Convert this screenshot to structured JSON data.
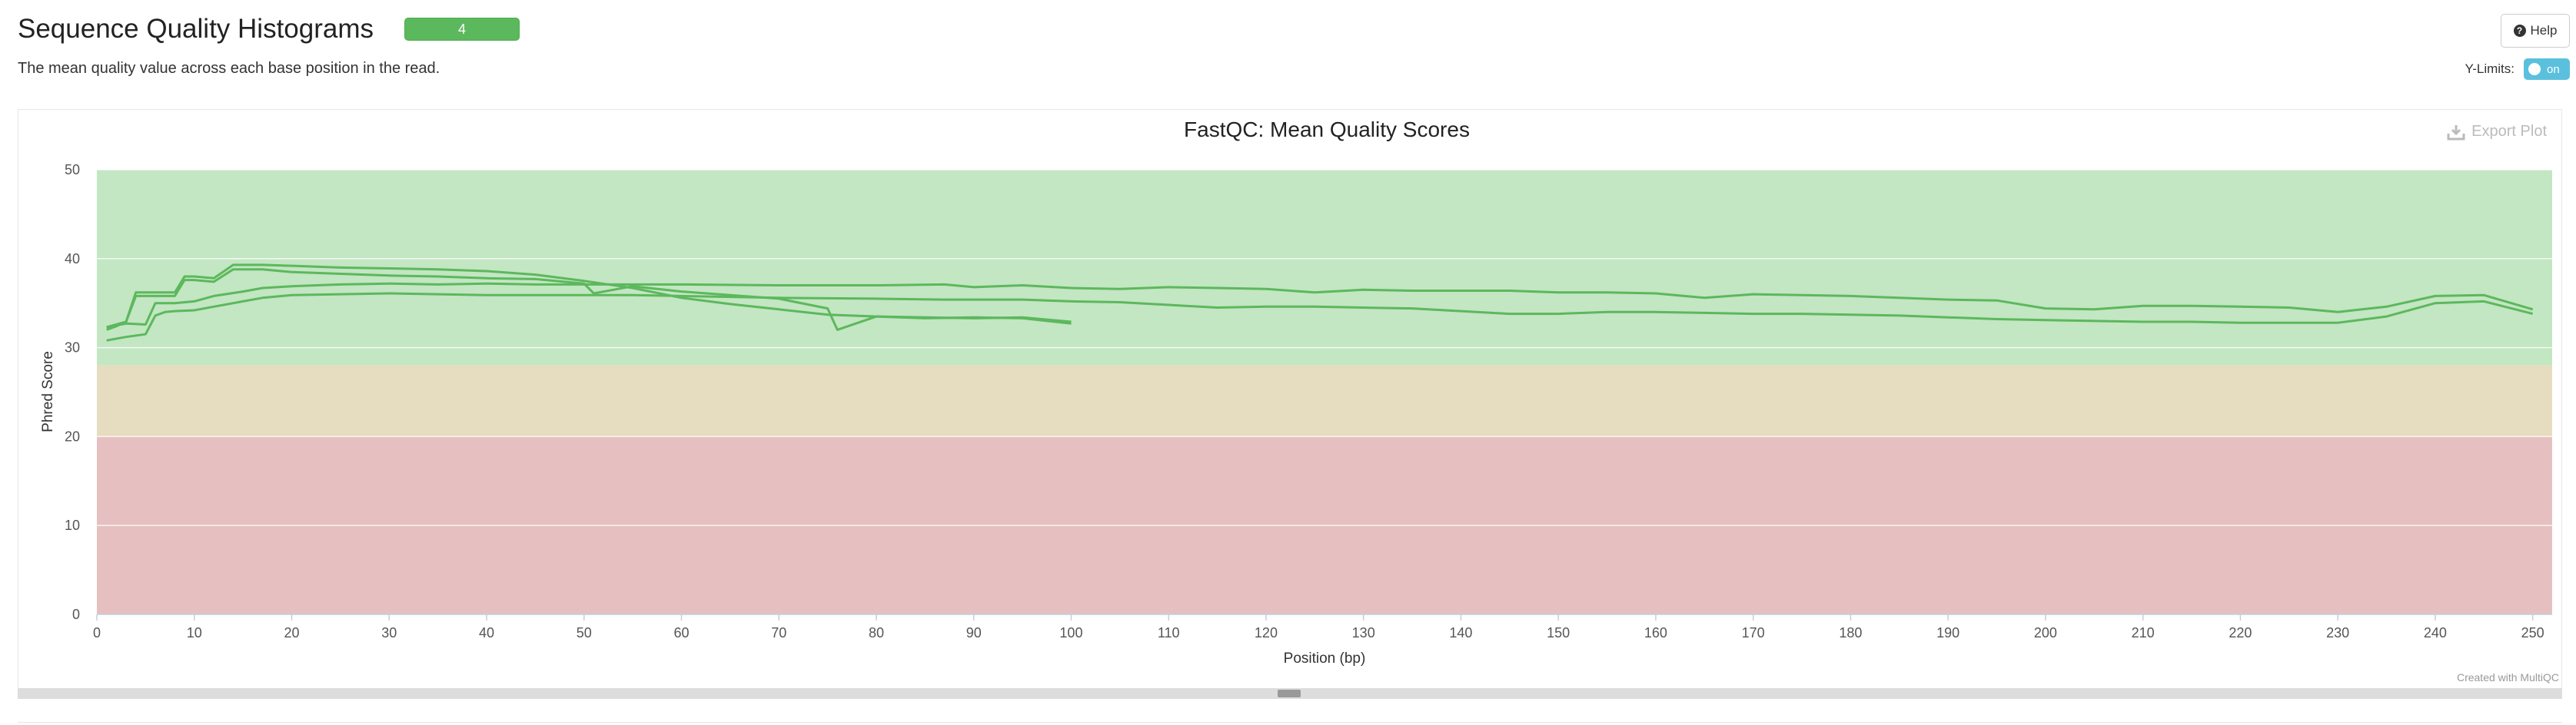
{
  "header": {
    "title": "Sequence Quality Histograms",
    "badge": "4",
    "description": "The mean quality value across each base position in the read."
  },
  "controls": {
    "help_label": "Help",
    "ylimits_label": "Y-Limits:",
    "ylimits_toggle": "on",
    "export_label": "Export Plot"
  },
  "footer": {
    "credit": "Created with MultiQC"
  },
  "colors": {
    "good_band": "#c3e6c3",
    "warn_band": "#e6dcbf",
    "fail_band": "#e6c0c0",
    "line": "#5cb85c"
  },
  "chart_data": {
    "type": "line",
    "title": "FastQC: Mean Quality Scores",
    "xlabel": "Position (bp)",
    "ylabel": "Phred Score",
    "xlim": [
      0,
      252
    ],
    "ylim": [
      0,
      50
    ],
    "xticks": [
      0,
      10,
      20,
      30,
      40,
      50,
      60,
      70,
      80,
      90,
      100,
      110,
      120,
      130,
      140,
      150,
      160,
      170,
      180,
      190,
      200,
      210,
      220,
      230,
      240,
      250
    ],
    "yticks": [
      0,
      10,
      20,
      30,
      40,
      50
    ],
    "bands": [
      {
        "from": 28,
        "to": 50,
        "zone": "good"
      },
      {
        "from": 20,
        "to": 28,
        "zone": "warn"
      },
      {
        "from": 0,
        "to": 20,
        "zone": "fail"
      }
    ],
    "grid": true,
    "series": [
      {
        "x": [
          1,
          2,
          3,
          4,
          5,
          6,
          7,
          8,
          9,
          10,
          12,
          14,
          17,
          20,
          25,
          30,
          35,
          40,
          45,
          50,
          55,
          60,
          65,
          70,
          75,
          80,
          85,
          90,
          95,
          100
        ],
        "y": [
          32.3,
          32.6,
          32.9,
          36.2,
          36.2,
          36.2,
          36.2,
          36.2,
          38.0,
          38.0,
          37.8,
          39.3,
          39.3,
          39.2,
          39.0,
          38.9,
          38.8,
          38.6,
          38.2,
          37.5,
          36.7,
          35.6,
          34.9,
          34.3,
          33.7,
          33.5,
          33.3,
          33.4,
          33.3,
          32.7
        ]
      },
      {
        "x": [
          1,
          2,
          3,
          4,
          5,
          6,
          7,
          8,
          9,
          10,
          12,
          14,
          17,
          20,
          25,
          30,
          35,
          40,
          45,
          50,
          51,
          55,
          60,
          65,
          70,
          75,
          76,
          80,
          85,
          90,
          95,
          100
        ],
        "y": [
          32.0,
          32.4,
          32.9,
          35.8,
          35.8,
          35.8,
          35.8,
          35.8,
          37.6,
          37.6,
          37.4,
          38.8,
          38.8,
          38.5,
          38.3,
          38.1,
          38.0,
          37.8,
          37.7,
          37.2,
          36.1,
          36.9,
          36.3,
          35.9,
          35.5,
          34.4,
          32.0,
          33.5,
          33.4,
          33.3,
          33.4,
          32.9
        ]
      },
      {
        "x": [
          1,
          3,
          5,
          6,
          7,
          8,
          10,
          12,
          15,
          17,
          20,
          25,
          30,
          35,
          40,
          45,
          50,
          55,
          60,
          70,
          80,
          87,
          90,
          95,
          100,
          105,
          110,
          115,
          120,
          125,
          130,
          135,
          140,
          145,
          150,
          155,
          160,
          165,
          170,
          175,
          180,
          185,
          190,
          195,
          200,
          205,
          210,
          215,
          220,
          225,
          230,
          235,
          240,
          245,
          250
        ],
        "y": [
          32.3,
          32.7,
          32.6,
          35.0,
          35.0,
          35.0,
          35.2,
          35.8,
          36.3,
          36.7,
          36.9,
          37.1,
          37.2,
          37.1,
          37.2,
          37.1,
          37.1,
          37.1,
          37.1,
          37.0,
          37.0,
          37.1,
          36.8,
          37.0,
          36.7,
          36.6,
          36.8,
          36.7,
          36.6,
          36.2,
          36.5,
          36.4,
          36.4,
          36.4,
          36.2,
          36.2,
          36.1,
          35.6,
          36.0,
          35.9,
          35.8,
          35.6,
          35.4,
          35.3,
          34.4,
          34.3,
          34.7,
          34.7,
          34.6,
          34.5,
          34.0,
          34.6,
          35.8,
          35.9,
          34.3
        ]
      },
      {
        "x": [
          1,
          3,
          5,
          6,
          7,
          8,
          10,
          12,
          15,
          17,
          20,
          25,
          30,
          35,
          40,
          45,
          50,
          55,
          60,
          70,
          80,
          87,
          90,
          95,
          100,
          105,
          110,
          115,
          120,
          125,
          130,
          135,
          140,
          145,
          150,
          155,
          160,
          165,
          170,
          175,
          180,
          185,
          190,
          195,
          200,
          205,
          210,
          215,
          220,
          225,
          230,
          235,
          240,
          245,
          250
        ],
        "y": [
          30.8,
          31.2,
          31.5,
          33.6,
          34.0,
          34.1,
          34.2,
          34.6,
          35.2,
          35.6,
          35.9,
          36.0,
          36.1,
          36.0,
          35.9,
          35.9,
          35.9,
          35.9,
          35.8,
          35.6,
          35.5,
          35.4,
          35.4,
          35.4,
          35.2,
          35.1,
          34.8,
          34.5,
          34.6,
          34.6,
          34.5,
          34.4,
          34.1,
          33.8,
          33.8,
          34.0,
          34.0,
          33.9,
          33.8,
          33.8,
          33.7,
          33.6,
          33.4,
          33.2,
          33.1,
          33.0,
          32.9,
          32.9,
          32.8,
          32.8,
          32.8,
          33.5,
          35.0,
          35.2,
          33.8
        ]
      }
    ]
  }
}
